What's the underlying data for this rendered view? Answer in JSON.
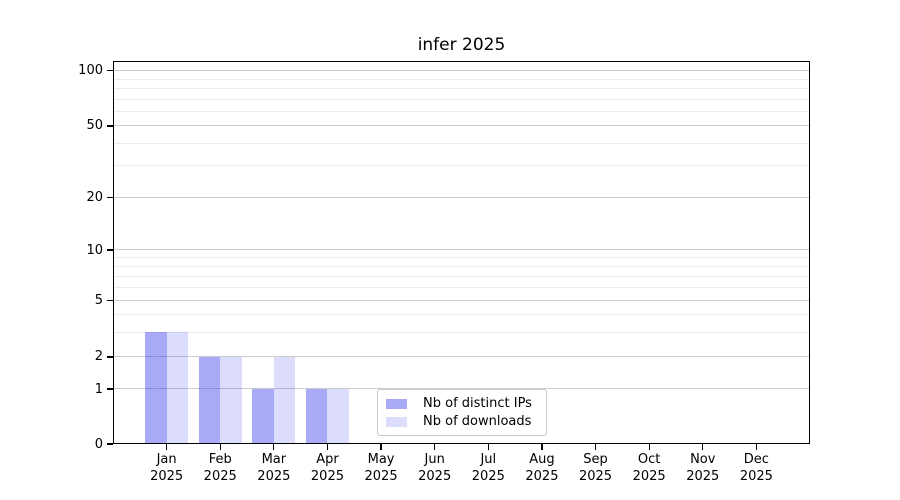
{
  "chart_data": {
    "type": "bar",
    "title": "infer 2025",
    "categories": [
      "Jan",
      "Feb",
      "Mar",
      "Apr",
      "May",
      "Jun",
      "Jul",
      "Aug",
      "Sep",
      "Oct",
      "Nov",
      "Dec"
    ],
    "x_tick_year": "2025",
    "series": [
      {
        "name": "Nb of distinct IPs",
        "key": "distinct-ips",
        "color": "rgba(62,66,238,0.45)",
        "values": [
          3,
          2,
          1,
          1,
          0,
          0,
          0,
          0,
          0,
          0,
          0,
          0
        ]
      },
      {
        "name": "Nb of downloads",
        "key": "downloads",
        "color": "rgba(62,66,238,0.18)",
        "values": [
          3,
          2,
          2,
          1,
          0,
          0,
          0,
          0,
          0,
          0,
          0,
          0
        ]
      }
    ],
    "y_axis": {
      "ticks": [
        0,
        1,
        2,
        5,
        10,
        20,
        50,
        100
      ],
      "tick_labels": [
        "0",
        "1",
        "2",
        "5",
        "10",
        "20",
        "50",
        "100"
      ],
      "minor_ticks": [
        3,
        4,
        6,
        7,
        8,
        9,
        30,
        40,
        60,
        70,
        80,
        90
      ],
      "range": [
        0,
        100
      ],
      "scale": "symlog"
    },
    "legend": {
      "position": "lower center",
      "entries": [
        "Nb of distinct IPs",
        "Nb of downloads"
      ]
    },
    "grid": "horizontal major and minor lines"
  },
  "colors": {
    "bar_distinct_ips": "rgba(62,66,238,0.45)",
    "bar_downloads": "rgba(62,66,238,0.18)",
    "major_grid": "#cccccc",
    "minor_grid": "#ececec",
    "axis": "#000000",
    "text": "#000000",
    "legend_border": "#cbcbcb"
  }
}
